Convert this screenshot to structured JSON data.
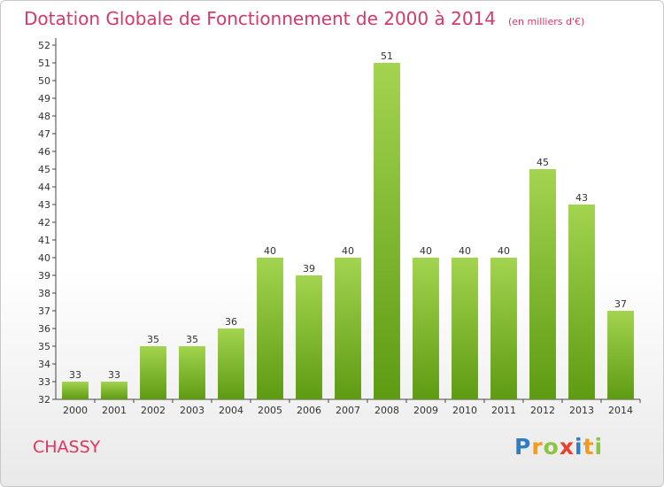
{
  "header": {
    "title": "Dotation Globale de Fonctionnement de 2000 à 2014",
    "subtitle": "(en milliers d'€)"
  },
  "footer": {
    "commune": "CHASSY",
    "logo_letters": [
      "P",
      "r",
      "o",
      "x",
      "i",
      "t",
      "i"
    ]
  },
  "colors": {
    "bar_top": "#a3d44f",
    "bar_bottom": "#5e9b12",
    "title": "#d4396a"
  },
  "chart_data": {
    "type": "bar",
    "title": "Dotation Globale de Fonctionnement de 2000 à 2014",
    "subtitle": "(en milliers d'€)",
    "xlabel": "",
    "ylabel": "",
    "categories": [
      "2000",
      "2001",
      "2002",
      "2003",
      "2004",
      "2005",
      "2006",
      "2007",
      "2008",
      "2009",
      "2010",
      "2011",
      "2012",
      "2013",
      "2014"
    ],
    "values": [
      33,
      33,
      35,
      35,
      36,
      40,
      39,
      40,
      51,
      40,
      40,
      40,
      45,
      43,
      37
    ],
    "ylim": [
      32,
      52
    ],
    "ytick_step": 1,
    "grid": false,
    "data_labels": true
  }
}
